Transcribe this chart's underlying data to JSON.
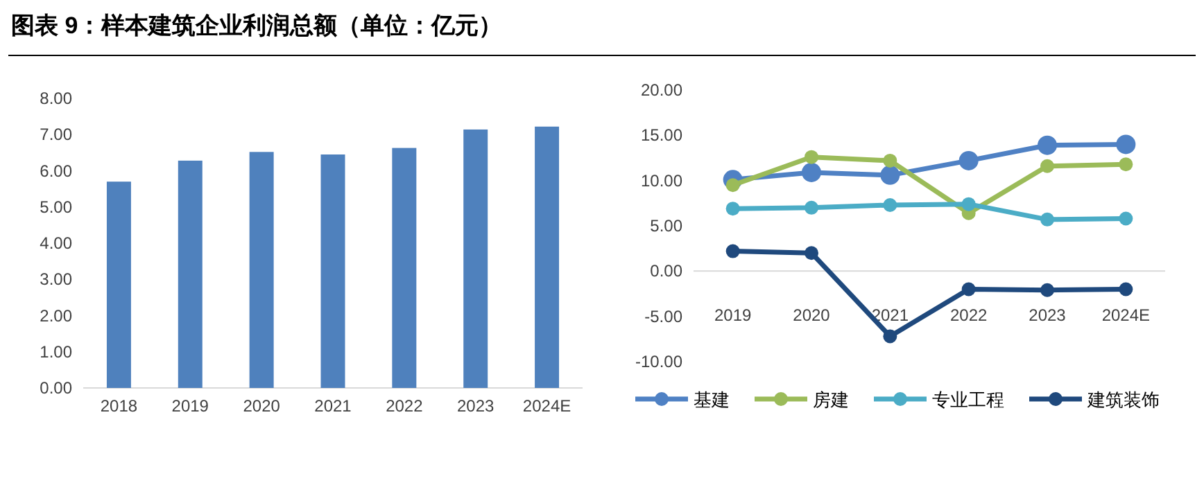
{
  "chart_data": [
    {
      "type": "bar",
      "title": "图表 9：样本建筑企业利润总额（单位：亿元）",
      "categories": [
        "2018",
        "2019",
        "2020",
        "2021",
        "2022",
        "2023",
        "2024E"
      ],
      "values": [
        5.7,
        6.28,
        6.52,
        6.45,
        6.63,
        7.14,
        7.22
      ],
      "color": "#4f81bd",
      "ylim": [
        0,
        8
      ],
      "yticks": [
        {
          "value": 0,
          "label": "0.00"
        },
        {
          "value": 1,
          "label": "1.00"
        },
        {
          "value": 2,
          "label": "2.00"
        },
        {
          "value": 3,
          "label": "3.00"
        },
        {
          "value": 4,
          "label": "4.00"
        },
        {
          "value": 5,
          "label": "5.00"
        },
        {
          "value": 6,
          "label": "6.00"
        },
        {
          "value": 7,
          "label": "7.00"
        },
        {
          "value": 8,
          "label": "8.00"
        }
      ],
      "grid": false
    },
    {
      "type": "line",
      "categories": [
        "2019",
        "2020",
        "2021",
        "2022",
        "2023",
        "2024E"
      ],
      "series": [
        {
          "name": "基建",
          "color": "#4f81c4",
          "values": [
            10.1,
            10.9,
            10.6,
            12.2,
            13.9,
            14.0
          ]
        },
        {
          "name": "房建",
          "color": "#9bbb59",
          "values": [
            9.5,
            12.6,
            12.2,
            6.4,
            11.6,
            11.8
          ]
        },
        {
          "name": "专业工程",
          "color": "#4bacc6",
          "values": [
            6.9,
            7.0,
            7.3,
            7.4,
            5.7,
            5.8
          ]
        },
        {
          "name": "建筑装饰",
          "color": "#1f497d",
          "values": [
            2.2,
            2.0,
            -7.2,
            -2.0,
            -2.1,
            -2.0
          ]
        }
      ],
      "ylim": [
        -10,
        20
      ],
      "yticks": [
        {
          "value": -10,
          "label": "-10.00"
        },
        {
          "value": -5,
          "label": "-5.00"
        },
        {
          "value": 0,
          "label": "0.00"
        },
        {
          "value": 5,
          "label": "5.00"
        },
        {
          "value": 10,
          "label": "10.00"
        },
        {
          "value": 15,
          "label": "15.00"
        },
        {
          "value": 20,
          "label": "20.00"
        }
      ],
      "grid": false,
      "legend": "bottom",
      "marker": "circle",
      "line_style": "solid"
    }
  ]
}
